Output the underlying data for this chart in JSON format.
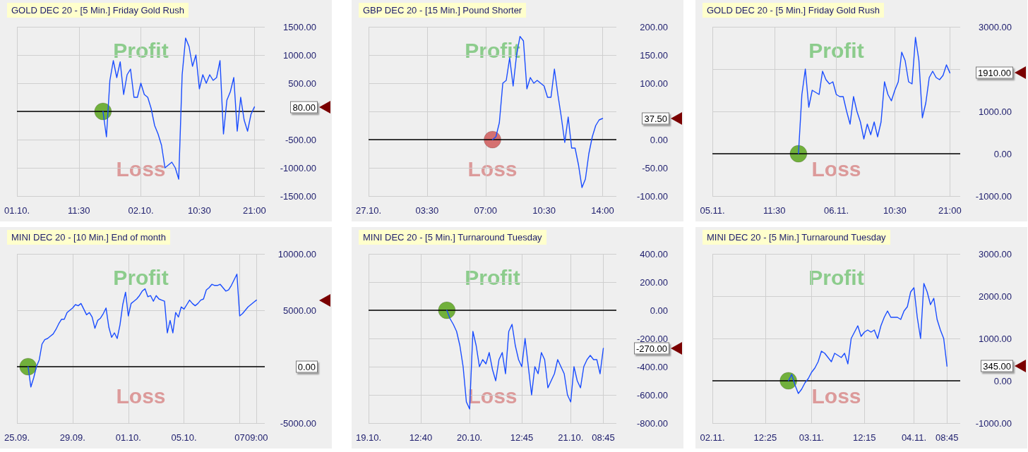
{
  "chart_data": [
    {
      "type": "line",
      "title": "GOLD DEC 20 - [5 Min.] Friday Gold Rush",
      "categories": [
        "01.10.",
        null,
        null,
        null,
        null,
        null,
        null,
        null,
        null,
        null,
        null,
        null,
        null,
        null,
        null,
        null,
        null,
        null,
        "11:30",
        null,
        null,
        null,
        null,
        null,
        null,
        null,
        null,
        null,
        null,
        null,
        null,
        null,
        null,
        null,
        null,
        null,
        "02.10.",
        null,
        null,
        null,
        null,
        null,
        null,
        null,
        null,
        null,
        null,
        null,
        null,
        null,
        null,
        null,
        null,
        "10:30",
        null,
        null,
        null,
        null,
        null,
        null,
        null,
        null,
        null,
        null,
        null,
        null,
        null,
        null,
        null,
        "21:00",
        null,
        null,
        null
      ],
      "series": [
        {
          "type": "line",
          "color": "#1a4dff",
          "values": [
            null,
            null,
            null,
            null,
            null,
            null,
            null,
            null,
            null,
            null,
            null,
            null,
            null,
            null,
            null,
            null,
            null,
            null,
            null,
            null,
            null,
            null,
            null,
            null,
            null,
            0,
            -450,
            550,
            900,
            600,
            880,
            300,
            650,
            750,
            250,
            250,
            500,
            300,
            250,
            50,
            -250,
            -400,
            -600,
            -1000,
            -950,
            -900,
            -1000,
            -1200,
            650,
            1300,
            1150,
            800,
            1000,
            400,
            650,
            500,
            650,
            550,
            600,
            900,
            -400,
            200,
            350,
            600,
            -350,
            250,
            -150,
            -350,
            -50,
            80,
            null,
            null,
            null
          ]
        },
        {
          "type": "scatter",
          "color": "#5aa51c",
          "marker": "circle",
          "values": [
            null,
            null,
            null,
            null,
            null,
            null,
            null,
            null,
            null,
            null,
            null,
            null,
            null,
            null,
            null,
            null,
            null,
            null,
            null,
            null,
            null,
            null,
            null,
            null,
            null,
            0,
            null,
            null,
            null,
            null,
            null,
            null,
            null,
            null,
            null,
            null,
            null,
            null,
            null,
            null,
            null,
            null,
            null,
            null,
            null,
            null,
            null,
            null,
            null,
            null,
            null,
            null,
            null,
            null,
            null,
            null,
            null,
            null,
            null,
            null,
            null,
            null,
            null,
            null,
            null,
            null,
            null,
            null,
            null,
            null,
            null,
            null,
            null
          ]
        }
      ],
      "ylim": [
        -1500,
        1500
      ],
      "yticks": [
        {
          "value": -1500,
          "label": "-1500.00"
        },
        {
          "value": -1000,
          "label": "-1000.00"
        },
        {
          "value": -500,
          "label": "-500.00"
        },
        {
          "value": 0,
          "label": null
        },
        {
          "value": 500,
          "label": "500.00"
        },
        {
          "value": 1000,
          "label": "1000.00"
        },
        {
          "value": 1500,
          "label": "1500.00"
        }
      ],
      "grid": true,
      "marker": "none",
      "line_style": "solid",
      "ref_lines": [
        {
          "axis": "y",
          "value": 0,
          "color": "#000000"
        }
      ],
      "annotations": [
        "Profit",
        "Loss",
        "80.00"
      ]
    },
    {
      "type": "line",
      "title": "GBP DEC 20 - [15 Min.] Pound Shorter",
      "categories": [
        "27.10.",
        null,
        null,
        null,
        null,
        null,
        null,
        null,
        null,
        null,
        null,
        null,
        null,
        null,
        null,
        null,
        null,
        "03:30",
        null,
        null,
        null,
        null,
        null,
        null,
        null,
        null,
        null,
        null,
        null,
        null,
        null,
        null,
        null,
        null,
        "07:00",
        null,
        null,
        null,
        null,
        null,
        null,
        null,
        null,
        null,
        null,
        null,
        null,
        null,
        null,
        null,
        null,
        "10:30",
        null,
        null,
        null,
        null,
        null,
        null,
        null,
        null,
        null,
        null,
        null,
        null,
        null,
        null,
        null,
        null,
        "14:00",
        null,
        null,
        null,
        null
      ],
      "series": [
        {
          "type": "line",
          "color": "#1a4dff",
          "values": [
            null,
            null,
            null,
            null,
            null,
            null,
            null,
            null,
            null,
            null,
            null,
            null,
            null,
            null,
            null,
            null,
            null,
            null,
            null,
            null,
            null,
            null,
            null,
            null,
            null,
            null,
            null,
            null,
            null,
            null,
            null,
            null,
            null,
            null,
            null,
            null,
            0,
            5,
            30,
            100,
            105,
            145,
            95,
            150,
            183,
            175,
            90,
            110,
            100,
            105,
            100,
            95,
            75,
            75,
            125,
            80,
            40,
            -5,
            40,
            -15,
            -15,
            -45,
            -85,
            -70,
            -25,
            5,
            25,
            35,
            37.5,
            null,
            null,
            null,
            null
          ]
        },
        {
          "type": "scatter",
          "color": "#d05a5a",
          "marker": "circle",
          "values": [
            null,
            null,
            null,
            null,
            null,
            null,
            null,
            null,
            null,
            null,
            null,
            null,
            null,
            null,
            null,
            null,
            null,
            null,
            null,
            null,
            null,
            null,
            null,
            null,
            null,
            null,
            null,
            null,
            null,
            null,
            null,
            null,
            null,
            null,
            null,
            null,
            0,
            null,
            null,
            null,
            null,
            null,
            null,
            null,
            null,
            null,
            null,
            null,
            null,
            null,
            null,
            null,
            null,
            null,
            null,
            null,
            null,
            null,
            null,
            null,
            null,
            null,
            null,
            null,
            null,
            null,
            null,
            null,
            null,
            null,
            null,
            null,
            null
          ]
        }
      ],
      "ylim": [
        -100,
        200
      ],
      "yticks": [
        {
          "value": -100,
          "label": "-100.00"
        },
        {
          "value": -50,
          "label": "-50.00"
        },
        {
          "value": 0,
          "label": "0.00"
        },
        {
          "value": 50,
          "label": null
        },
        {
          "value": 100,
          "label": "100.00"
        },
        {
          "value": 150,
          "label": "150.00"
        },
        {
          "value": 200,
          "label": "200.00"
        }
      ],
      "grid": true,
      "marker": "none",
      "line_style": "solid",
      "ref_lines": [
        {
          "axis": "y",
          "value": 0,
          "color": "#000000"
        }
      ],
      "annotations": [
        "Profit",
        "Loss",
        "37.50"
      ]
    },
    {
      "type": "line",
      "title": "GOLD DEC 20 - [5 Min.] Friday Gold Rush",
      "categories": [
        "05.11.",
        null,
        null,
        null,
        null,
        null,
        null,
        null,
        null,
        null,
        null,
        null,
        null,
        null,
        null,
        null,
        null,
        null,
        "11:30",
        null,
        null,
        null,
        null,
        null,
        null,
        null,
        null,
        null,
        null,
        null,
        null,
        null,
        null,
        null,
        null,
        null,
        "06.11.",
        null,
        null,
        null,
        null,
        null,
        null,
        null,
        null,
        null,
        null,
        null,
        null,
        null,
        null,
        null,
        null,
        "10:30",
        null,
        null,
        null,
        null,
        null,
        null,
        null,
        null,
        null,
        null,
        null,
        null,
        null,
        null,
        null,
        "21:00",
        null,
        null,
        null
      ],
      "series": [
        {
          "type": "line",
          "color": "#1a4dff",
          "values": [
            null,
            null,
            null,
            null,
            null,
            null,
            null,
            null,
            null,
            null,
            null,
            null,
            null,
            null,
            null,
            null,
            null,
            null,
            null,
            null,
            null,
            null,
            null,
            null,
            null,
            0,
            1400,
            2000,
            1100,
            1500,
            1450,
            1400,
            1950,
            1750,
            1650,
            1700,
            1400,
            1350,
            1350,
            1000,
            700,
            1350,
            1000,
            750,
            350,
            700,
            450,
            750,
            400,
            750,
            1700,
            1400,
            1250,
            1500,
            1700,
            2400,
            2200,
            1700,
            1650,
            2750,
            2200,
            850,
            1200,
            1800,
            1950,
            1800,
            1750,
            1850,
            2100,
            1910,
            null,
            null,
            null
          ]
        },
        {
          "type": "scatter",
          "color": "#5aa51c",
          "marker": "circle",
          "values": [
            null,
            null,
            null,
            null,
            null,
            null,
            null,
            null,
            null,
            null,
            null,
            null,
            null,
            null,
            null,
            null,
            null,
            null,
            null,
            null,
            null,
            null,
            null,
            null,
            null,
            0,
            null,
            null,
            null,
            null,
            null,
            null,
            null,
            null,
            null,
            null,
            null,
            null,
            null,
            null,
            null,
            null,
            null,
            null,
            null,
            null,
            null,
            null,
            null,
            null,
            null,
            null,
            null,
            null,
            null,
            null,
            null,
            null,
            null,
            null,
            null,
            null,
            null,
            null,
            null,
            null,
            null,
            null,
            null,
            null,
            null,
            null,
            null
          ]
        }
      ],
      "ylim": [
        -1000,
        3000
      ],
      "yticks": [
        {
          "value": -1000,
          "label": "-1000.00"
        },
        {
          "value": 0,
          "label": "0.00"
        },
        {
          "value": 1000,
          "label": "1000.00"
        },
        {
          "value": 2000,
          "label": null
        },
        {
          "value": 3000,
          "label": "3000.00"
        }
      ],
      "grid": true,
      "marker": "none",
      "line_style": "solid",
      "ref_lines": [
        {
          "axis": "y",
          "value": 0,
          "color": "#000000"
        }
      ],
      "annotations": [
        "Profit",
        "Loss",
        "1910.00"
      ]
    },
    {
      "type": "line",
      "title": "MINI DEC 20 - [10 Min.] End of month",
      "categories": [
        "25.09.",
        null,
        null,
        null,
        null,
        null,
        null,
        null,
        null,
        null,
        null,
        null,
        null,
        null,
        null,
        null,
        null,
        null,
        null,
        null,
        "29.09.",
        null,
        null,
        null,
        null,
        null,
        null,
        null,
        null,
        null,
        null,
        null,
        null,
        null,
        null,
        null,
        null,
        null,
        null,
        null,
        "01.10.",
        null,
        null,
        null,
        null,
        null,
        null,
        null,
        null,
        null,
        null,
        null,
        null,
        null,
        null,
        null,
        null,
        null,
        null,
        null,
        "05.10.",
        null,
        null,
        null,
        null,
        null,
        null,
        null,
        null,
        null,
        null,
        null,
        null,
        null,
        null,
        null,
        null,
        null,
        null,
        null,
        "07",
        null,
        null,
        null,
        null,
        null,
        "09:00",
        null,
        null,
        null
      ],
      "series": [
        {
          "type": "line",
          "color": "#1a4dff",
          "values": [
            null,
            null,
            null,
            null,
            0,
            -1800,
            -1000,
            0,
            600,
            2000,
            2400,
            2500,
            2700,
            2900,
            3300,
            3800,
            4200,
            4200,
            4800,
            5000,
            5200,
            5500,
            5400,
            5600,
            5100,
            4600,
            4800,
            4400,
            3400,
            4100,
            4300,
            4700,
            5200,
            3500,
            2600,
            3000,
            2500,
            3700,
            5500,
            6600,
            4500,
            5600,
            5800,
            6000,
            6300,
            6700,
            6900,
            6200,
            6300,
            5800,
            6300,
            6000,
            5900,
            5800,
            3000,
            4100,
            3000,
            4800,
            4400,
            5300,
            5100,
            5500,
            5900,
            5600,
            5400,
            5600,
            5900,
            6000,
            6800,
            7000,
            7300,
            7200,
            7200,
            7300,
            7000,
            6700,
            6800,
            7200,
            7700,
            8200,
            4500,
            4700,
            5000,
            5300,
            5500,
            5700,
            5900,
            null,
            null,
            null
          ]
        },
        {
          "type": "scatter",
          "color": "#5aa51c",
          "marker": "circle",
          "values": [
            null,
            null,
            null,
            null,
            0,
            null,
            null,
            null,
            null,
            null,
            null,
            null,
            null,
            null,
            null,
            null,
            null,
            null,
            null,
            null,
            null,
            null,
            null,
            null,
            null,
            null,
            null,
            null,
            null,
            null,
            null,
            null,
            null,
            null,
            null,
            null,
            null,
            null,
            null,
            null,
            null,
            null,
            null,
            null,
            null,
            null,
            null,
            null,
            null,
            null,
            null,
            null,
            null,
            null,
            null,
            null,
            null,
            null,
            null,
            null,
            null,
            null,
            null,
            null,
            null,
            null,
            null,
            null,
            null,
            null,
            null,
            null,
            null,
            null,
            null,
            null,
            null,
            null,
            null,
            null,
            null,
            null,
            null,
            null,
            null,
            null,
            null,
            null,
            null,
            null
          ]
        }
      ],
      "ylim": [
        -5000,
        10000
      ],
      "yticks": [
        {
          "value": -5000,
          "label": "-5000.00"
        },
        {
          "value": 0,
          "label": null
        },
        {
          "value": 5000,
          "label": "5000.00"
        },
        {
          "value": 10000,
          "label": "10000.00"
        }
      ],
      "grid": true,
      "marker": "none",
      "line_style": "solid",
      "ref_lines": [
        {
          "axis": "y",
          "value": 0,
          "color": "#000000",
          "label": "0.00"
        }
      ],
      "annotations": [
        "Profit",
        "Loss"
      ]
    },
    {
      "type": "line",
      "title": "MINI DEC 20 - [5 Min.] Turnaround Tuesday",
      "categories": [
        "19.10.",
        null,
        null,
        null,
        null,
        null,
        null,
        null,
        null,
        null,
        null,
        null,
        null,
        null,
        null,
        null,
        "12:40",
        null,
        null,
        null,
        null,
        null,
        null,
        null,
        null,
        null,
        null,
        null,
        null,
        null,
        null,
        "20.10.",
        null,
        null,
        null,
        null,
        null,
        null,
        null,
        null,
        null,
        null,
        null,
        null,
        null,
        null,
        null,
        "12:45",
        null,
        null,
        null,
        null,
        null,
        null,
        null,
        null,
        null,
        null,
        null,
        null,
        null,
        null,
        "21.10.",
        null,
        null,
        null,
        null,
        null,
        null,
        null,
        null,
        null,
        "08:45",
        null,
        null,
        null,
        null
      ],
      "series": [
        {
          "type": "line",
          "color": "#1a4dff",
          "values": [
            null,
            null,
            null,
            null,
            null,
            null,
            null,
            null,
            null,
            null,
            null,
            null,
            null,
            null,
            null,
            null,
            null,
            null,
            null,
            null,
            null,
            null,
            null,
            null,
            0,
            -60,
            -100,
            -150,
            -250,
            -400,
            -650,
            -700,
            -150,
            -250,
            -400,
            -350,
            -380,
            -300,
            -420,
            -500,
            -350,
            -300,
            -450,
            -150,
            -100,
            -250,
            -350,
            -400,
            -200,
            -400,
            -600,
            -400,
            -450,
            -300,
            -350,
            -550,
            -500,
            -450,
            -350,
            -400,
            -450,
            -600,
            -650,
            -400,
            -500,
            -550,
            -400,
            -350,
            -320,
            -350,
            -350,
            -450,
            -270,
            null,
            null,
            null,
            null
          ]
        },
        {
          "type": "scatter",
          "color": "#5aa51c",
          "marker": "circle",
          "values": [
            null,
            null,
            null,
            null,
            null,
            null,
            null,
            null,
            null,
            null,
            null,
            null,
            null,
            null,
            null,
            null,
            null,
            null,
            null,
            null,
            null,
            null,
            null,
            null,
            0,
            null,
            null,
            null,
            null,
            null,
            null,
            null,
            null,
            null,
            null,
            null,
            null,
            null,
            null,
            null,
            null,
            null,
            null,
            null,
            null,
            null,
            null,
            null,
            null,
            null,
            null,
            null,
            null,
            null,
            null,
            null,
            null,
            null,
            null,
            null,
            null,
            null,
            null,
            null,
            null,
            null,
            null,
            null,
            null,
            null,
            null,
            null,
            null,
            null,
            null,
            null,
            null
          ]
        }
      ],
      "ylim": [
        -800,
        400
      ],
      "yticks": [
        {
          "value": -800,
          "label": "-800.00"
        },
        {
          "value": -600,
          "label": "-600.00"
        },
        {
          "value": -400,
          "label": "-400.00"
        },
        {
          "value": -200,
          "label": "-200.00"
        },
        {
          "value": 0,
          "label": "0.00"
        },
        {
          "value": 200,
          "label": "200.00"
        },
        {
          "value": 400,
          "label": "400.00"
        }
      ],
      "grid": true,
      "marker": "none",
      "line_style": "solid",
      "ref_lines": [
        {
          "axis": "y",
          "value": 0,
          "color": "#000000"
        }
      ],
      "annotations": [
        "Profit",
        "Loss",
        "-270.00"
      ]
    },
    {
      "type": "line",
      "title": "MINI DEC 20 - [5 Min.] Turnaround Tuesday",
      "categories": [
        "02.11.",
        null,
        null,
        null,
        null,
        null,
        null,
        null,
        null,
        null,
        null,
        null,
        null,
        null,
        null,
        null,
        "12:25",
        null,
        null,
        null,
        null,
        null,
        null,
        null,
        null,
        null,
        null,
        null,
        null,
        null,
        "03.11.",
        null,
        null,
        null,
        null,
        null,
        null,
        null,
        null,
        null,
        null,
        null,
        null,
        null,
        null,
        null,
        "12:15",
        null,
        null,
        null,
        null,
        null,
        null,
        null,
        null,
        null,
        null,
        null,
        null,
        null,
        null,
        "04.11.",
        null,
        null,
        null,
        null,
        null,
        null,
        null,
        null,
        null,
        "08:45",
        null,
        null,
        null,
        null
      ],
      "series": [
        {
          "type": "line",
          "color": "#1a4dff",
          "values": [
            null,
            null,
            null,
            null,
            null,
            null,
            null,
            null,
            null,
            null,
            null,
            null,
            null,
            null,
            null,
            null,
            null,
            null,
            null,
            null,
            null,
            null,
            null,
            0,
            150,
            -100,
            -300,
            -200,
            -50,
            50,
            200,
            300,
            450,
            700,
            650,
            550,
            450,
            650,
            600,
            550,
            650,
            400,
            1000,
            1150,
            1300,
            1050,
            1150,
            1200,
            1150,
            1200,
            1000,
            1300,
            1500,
            1650,
            1500,
            1500,
            1500,
            1450,
            1650,
            1750,
            2100,
            2200,
            1500,
            1000,
            2300,
            2100,
            1800,
            1950,
            1450,
            1200,
            1000,
            345,
            null,
            null,
            null,
            null
          ]
        },
        {
          "type": "scatter",
          "color": "#5aa51c",
          "marker": "circle",
          "values": [
            null,
            null,
            null,
            null,
            null,
            null,
            null,
            null,
            null,
            null,
            null,
            null,
            null,
            null,
            null,
            null,
            null,
            null,
            null,
            null,
            null,
            null,
            null,
            0,
            null,
            null,
            null,
            null,
            null,
            null,
            null,
            null,
            null,
            null,
            null,
            null,
            null,
            null,
            null,
            null,
            null,
            null,
            null,
            null,
            null,
            null,
            null,
            null,
            null,
            null,
            null,
            null,
            null,
            null,
            null,
            null,
            null,
            null,
            null,
            null,
            null,
            null,
            null,
            null,
            null,
            null,
            null,
            null,
            null,
            null,
            null,
            null,
            null,
            null,
            null,
            null
          ]
        }
      ],
      "ylim": [
        -1000,
        3000
      ],
      "yticks": [
        {
          "value": -1000,
          "label": "-1000.00"
        },
        {
          "value": 0,
          "label": "0.00"
        },
        {
          "value": 1000,
          "label": "1000.00"
        },
        {
          "value": 2000,
          "label": "2000.00"
        },
        {
          "value": 3000,
          "label": "3000.00"
        }
      ],
      "grid": true,
      "marker": "none",
      "line_style": "solid",
      "ref_lines": [
        {
          "axis": "y",
          "value": 0,
          "color": "#000000"
        }
      ],
      "annotations": [
        "Profit",
        "Loss",
        "345.00"
      ]
    }
  ]
}
